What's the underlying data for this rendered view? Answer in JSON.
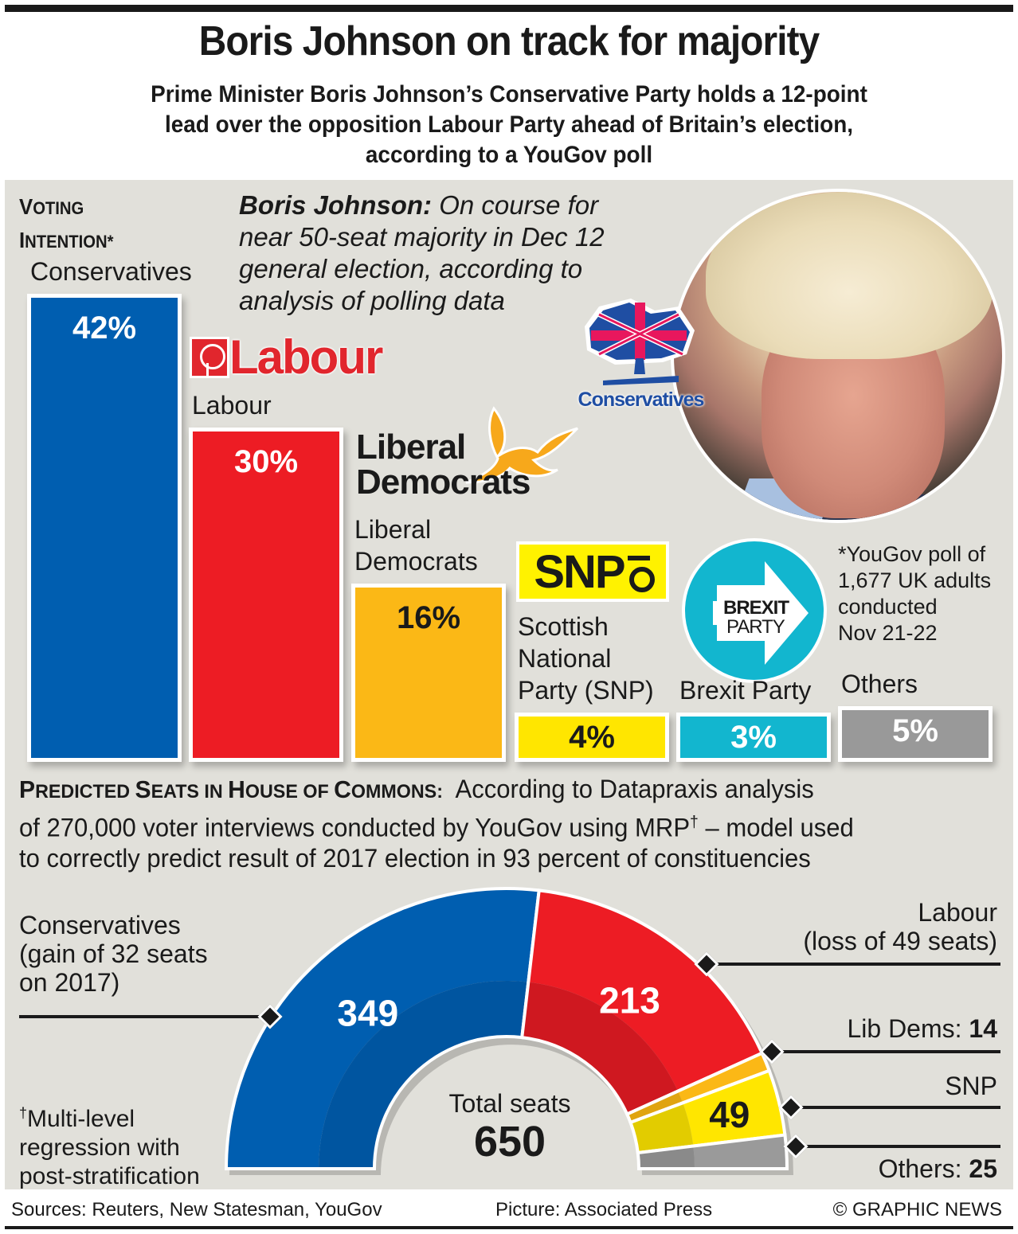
{
  "header": {
    "title": "Boris Johnson on track for majority",
    "subtitle_lines": [
      "Prime Minister Boris Johnson’s Conservative Party holds a 12-point",
      "lead over the opposition Labour Party ahead of Britain’s election,",
      "according to a YouGov poll"
    ]
  },
  "voting": {
    "heading_line1_first": "V",
    "heading_line1_rest": "OTING",
    "heading_line2_first": "I",
    "heading_line2_rest": "NTENTION*",
    "quote_bold": "Boris Johnson:",
    "quote_lines": [
      "On course for",
      "near 50-seat majority in Dec 12",
      "general election, according to",
      "analysis of polling data"
    ],
    "footnote_lines": [
      "*YouGov poll of",
      "1,677 UK adults",
      "conducted",
      "Nov 21-22"
    ]
  },
  "logos": {
    "labour": "Labour",
    "libdem_line1": "Liberal",
    "libdem_line2": "Democrats",
    "snp": "SNP",
    "brexit_line1": "BREXIT",
    "brexit_line2": "PARTY",
    "conservatives": "Conservatives"
  },
  "seats_section": {
    "heading_parts": [
      {
        "first": "P",
        "rest": "REDICTED "
      },
      {
        "first": "S",
        "rest": "EATS IN "
      },
      {
        "first": "H",
        "rest": "OUSE OF "
      },
      {
        "first": "C",
        "rest": "OMMONS:"
      }
    ],
    "text_line1": " According to Datapraxis analysis",
    "text_line2a": "of 270,000 voter interviews conducted by YouGov using MRP",
    "dagger": "†",
    "text_line2b": " – model used",
    "text_line3": "to correctly predict result of 2017 election in 93 percent of constituencies",
    "con_label_lines": [
      "Conservatives",
      "(gain of 32 seats",
      "on 2017)"
    ],
    "lab_label_lines": [
      "Labour",
      "(loss of 49 seats)"
    ],
    "libdem_label": "Lib Dems: ",
    "libdem_value": "14",
    "snp_label": "SNP",
    "others_label": "Others: ",
    "others_value": "25",
    "total_label": "Total seats",
    "total_value": "650",
    "mrp_note_dagger": "†",
    "mrp_note_lines": [
      "Multi-level",
      "regression with",
      "post-stratification"
    ]
  },
  "footer": {
    "sources": "Sources: Reuters, New Statesman, YouGov",
    "picture": "Picture: Associated Press",
    "copyright": "© GRAPHIC NEWS"
  },
  "chart_data": [
    {
      "type": "bar",
      "title": "Voting intention*",
      "unit": "%",
      "categories": [
        "Conservatives",
        "Labour",
        "Liberal Democrats",
        "Scottish National Party (SNP)",
        "Brexit Party",
        "Others"
      ],
      "values": [
        42,
        30,
        16,
        4,
        3,
        5
      ],
      "value_labels": [
        "42%",
        "30%",
        "16%",
        "4%",
        "3%",
        "5%"
      ],
      "label_lines": [
        [
          "Conservatives"
        ],
        [
          "Labour"
        ],
        [
          "Liberal",
          "Democrats"
        ],
        [
          "Scottish",
          "National",
          "Party (SNP)"
        ],
        [
          "Brexit Party"
        ],
        [
          "Others"
        ]
      ],
      "colors": [
        "#005eb0",
        "#ed1c24",
        "#fbb816",
        "#ffe600",
        "#12b6cf",
        "#999999"
      ],
      "value_text_colors": [
        "#ffffff",
        "#ffffff",
        "#1a1a1a",
        "#1a1a1a",
        "#ffffff",
        "#ffffff"
      ]
    },
    {
      "type": "pie",
      "subtype": "semicircle",
      "title": "Predicted seats in House of Commons",
      "categories": [
        "Conservatives",
        "Labour",
        "Lib Dems",
        "SNP",
        "Others"
      ],
      "values": [
        349,
        213,
        14,
        49,
        25
      ],
      "value_labels": [
        "349",
        "213",
        "",
        "49",
        ""
      ],
      "total": 650,
      "colors": [
        "#005eb0",
        "#ed1c24",
        "#fbb816",
        "#ffe600",
        "#9a9a9a"
      ],
      "inner_colors": [
        "#0055a0",
        "#cf1820",
        "#e0a410",
        "#e2cc00",
        "#8a8a8a"
      ],
      "value_text_colors": [
        "#ffffff",
        "#ffffff",
        "#1a1a1a",
        "#1a1a1a",
        "#1a1a1a"
      ]
    }
  ]
}
